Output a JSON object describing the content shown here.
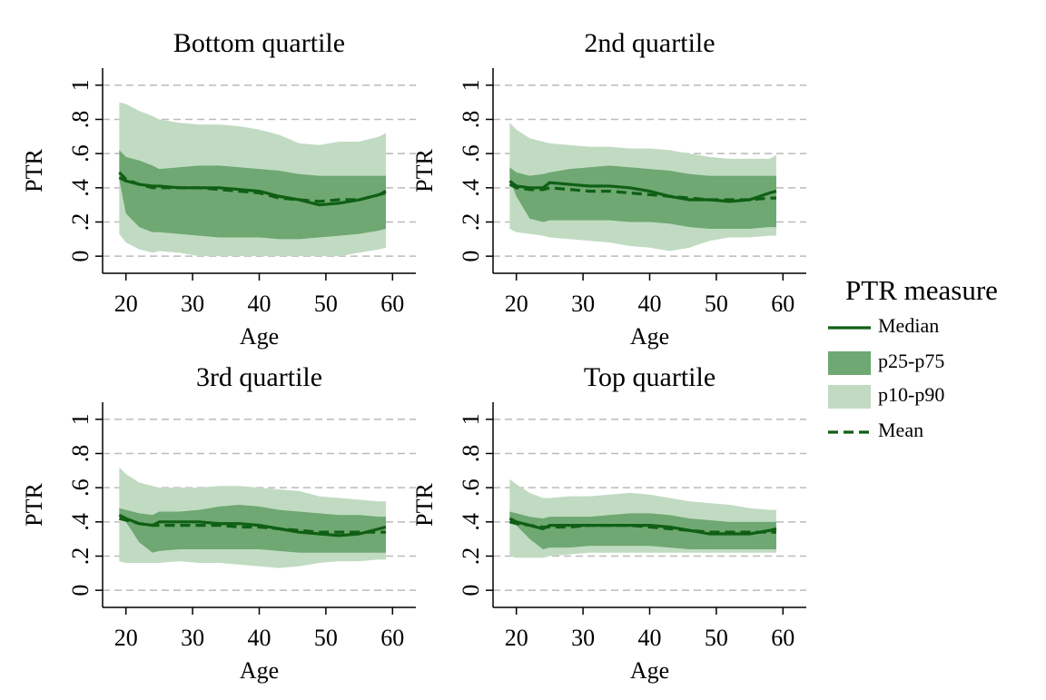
{
  "legend_title": "PTR measure",
  "legend_position": "right",
  "chart_data": [
    {
      "type": "band-line",
      "title": "Bottom quartile",
      "xlabel": "Age",
      "ylabel": "PTR",
      "x": [
        19,
        20,
        22,
        24,
        25,
        28,
        31,
        34,
        37,
        40,
        43,
        46,
        49,
        52,
        55,
        58,
        59
      ],
      "xlim": [
        16.5,
        63.5
      ],
      "ylim": [
        -0.1,
        1.1
      ],
      "xticks": [
        20,
        30,
        40,
        50,
        60
      ],
      "yticks": [
        0,
        {
          "value": 0.2,
          "label": ".2"
        },
        {
          "value": 0.4,
          "label": ".4"
        },
        {
          "value": 0.6,
          "label": ".6"
        },
        {
          "value": 0.8,
          "label": ".8"
        },
        1
      ],
      "grid": true,
      "series": [
        {
          "name": "Median",
          "type": "line",
          "color": "#0f5f14",
          "values": [
            0.46,
            0.44,
            0.42,
            0.41,
            0.41,
            0.4,
            0.4,
            0.4,
            0.39,
            0.38,
            0.35,
            0.33,
            0.3,
            0.31,
            0.33,
            0.36,
            0.38
          ]
        },
        {
          "name": "p25-p75",
          "type": "band",
          "color": "#6fa872",
          "low": [
            0.45,
            0.25,
            0.17,
            0.14,
            0.14,
            0.13,
            0.12,
            0.11,
            0.11,
            0.11,
            0.1,
            0.1,
            0.11,
            0.12,
            0.13,
            0.15,
            0.16
          ],
          "high": [
            0.62,
            0.58,
            0.56,
            0.53,
            0.51,
            0.52,
            0.53,
            0.53,
            0.52,
            0.51,
            0.5,
            0.48,
            0.47,
            0.47,
            0.47,
            0.47,
            0.47
          ]
        },
        {
          "name": "p10-p90",
          "type": "band",
          "color": "#c1dbc2",
          "low": [
            0.13,
            0.08,
            0.04,
            0.02,
            0.03,
            0.02,
            0.0,
            0.0,
            0.0,
            0.0,
            0.0,
            0.0,
            0.0,
            0.0,
            0.02,
            0.04,
            0.05
          ],
          "high": [
            0.9,
            0.89,
            0.85,
            0.82,
            0.8,
            0.78,
            0.77,
            0.77,
            0.76,
            0.74,
            0.71,
            0.66,
            0.65,
            0.67,
            0.67,
            0.7,
            0.72
          ]
        },
        {
          "name": "Mean",
          "type": "line",
          "dash": true,
          "color": "#0f5f14",
          "values": [
            0.49,
            0.45,
            0.42,
            0.4,
            0.4,
            0.4,
            0.4,
            0.39,
            0.38,
            0.37,
            0.34,
            0.33,
            0.32,
            0.33,
            0.33,
            0.36,
            0.37
          ]
        }
      ]
    },
    {
      "type": "band-line",
      "title": "2nd quartile",
      "xlabel": "Age",
      "ylabel": "PTR",
      "x": [
        19,
        20,
        22,
        24,
        25,
        28,
        31,
        34,
        37,
        40,
        43,
        46,
        49,
        52,
        55,
        58,
        59
      ],
      "xlim": [
        16.5,
        63.5
      ],
      "ylim": [
        -0.1,
        1.1
      ],
      "xticks": [
        20,
        30,
        40,
        50,
        60
      ],
      "yticks": [
        0,
        {
          "value": 0.2,
          "label": ".2"
        },
        {
          "value": 0.4,
          "label": ".4"
        },
        {
          "value": 0.6,
          "label": ".6"
        },
        {
          "value": 0.8,
          "label": ".8"
        },
        1
      ],
      "grid": true,
      "series": [
        {
          "name": "Median",
          "type": "line",
          "color": "#0f5f14",
          "values": [
            0.44,
            0.41,
            0.4,
            0.4,
            0.43,
            0.42,
            0.41,
            0.41,
            0.4,
            0.38,
            0.35,
            0.33,
            0.33,
            0.32,
            0.33,
            0.37,
            0.38
          ]
        },
        {
          "name": "p25-p75",
          "type": "band",
          "color": "#6fa872",
          "low": [
            0.45,
            0.35,
            0.22,
            0.2,
            0.21,
            0.21,
            0.21,
            0.21,
            0.2,
            0.2,
            0.19,
            0.17,
            0.16,
            0.16,
            0.16,
            0.17,
            0.17
          ],
          "high": [
            0.52,
            0.49,
            0.47,
            0.48,
            0.49,
            0.51,
            0.52,
            0.53,
            0.52,
            0.51,
            0.5,
            0.48,
            0.47,
            0.47,
            0.47,
            0.47,
            0.47
          ]
        },
        {
          "name": "p10-p90",
          "type": "band",
          "color": "#c1dbc2",
          "low": [
            0.16,
            0.14,
            0.13,
            0.12,
            0.11,
            0.1,
            0.09,
            0.08,
            0.06,
            0.05,
            0.03,
            0.05,
            0.09,
            0.11,
            0.11,
            0.12,
            0.12
          ],
          "high": [
            0.78,
            0.74,
            0.69,
            0.67,
            0.66,
            0.65,
            0.64,
            0.64,
            0.63,
            0.63,
            0.62,
            0.6,
            0.58,
            0.57,
            0.57,
            0.57,
            0.59
          ]
        },
        {
          "name": "Mean",
          "type": "line",
          "dash": true,
          "color": "#0f5f14",
          "values": [
            0.42,
            0.4,
            0.39,
            0.39,
            0.4,
            0.39,
            0.38,
            0.38,
            0.37,
            0.36,
            0.35,
            0.34,
            0.33,
            0.33,
            0.33,
            0.34,
            0.34
          ]
        }
      ]
    },
    {
      "type": "band-line",
      "title": "3rd quartile",
      "xlabel": "Age",
      "ylabel": "PTR",
      "x": [
        19,
        20,
        22,
        24,
        25,
        28,
        31,
        34,
        37,
        40,
        43,
        46,
        49,
        52,
        55,
        58,
        59
      ],
      "xlim": [
        16.5,
        63.5
      ],
      "ylim": [
        -0.1,
        1.1
      ],
      "xticks": [
        20,
        30,
        40,
        50,
        60
      ],
      "yticks": [
        0,
        {
          "value": 0.2,
          "label": ".2"
        },
        {
          "value": 0.4,
          "label": ".4"
        },
        {
          "value": 0.6,
          "label": ".6"
        },
        {
          "value": 0.8,
          "label": ".8"
        },
        1
      ],
      "grid": true,
      "series": [
        {
          "name": "Median",
          "type": "line",
          "color": "#0f5f14",
          "values": [
            0.44,
            0.42,
            0.39,
            0.38,
            0.4,
            0.4,
            0.4,
            0.39,
            0.39,
            0.38,
            0.36,
            0.34,
            0.33,
            0.32,
            0.33,
            0.36,
            0.37
          ]
        },
        {
          "name": "p25-p75",
          "type": "band",
          "color": "#6fa872",
          "low": [
            0.44,
            0.4,
            0.28,
            0.22,
            0.23,
            0.24,
            0.24,
            0.24,
            0.24,
            0.24,
            0.23,
            0.22,
            0.22,
            0.22,
            0.22,
            0.22,
            0.22
          ],
          "high": [
            0.48,
            0.47,
            0.45,
            0.44,
            0.46,
            0.46,
            0.47,
            0.49,
            0.5,
            0.49,
            0.47,
            0.46,
            0.45,
            0.44,
            0.44,
            0.43,
            0.43
          ]
        },
        {
          "name": "p10-p90",
          "type": "band",
          "color": "#c1dbc2",
          "low": [
            0.17,
            0.16,
            0.16,
            0.16,
            0.16,
            0.17,
            0.16,
            0.16,
            0.15,
            0.14,
            0.13,
            0.14,
            0.16,
            0.17,
            0.17,
            0.18,
            0.18
          ],
          "high": [
            0.72,
            0.68,
            0.63,
            0.61,
            0.6,
            0.6,
            0.6,
            0.61,
            0.61,
            0.6,
            0.59,
            0.58,
            0.55,
            0.54,
            0.53,
            0.52,
            0.52
          ]
        },
        {
          "name": "Mean",
          "type": "line",
          "dash": true,
          "color": "#0f5f14",
          "values": [
            0.42,
            0.41,
            0.39,
            0.38,
            0.38,
            0.38,
            0.38,
            0.38,
            0.37,
            0.37,
            0.36,
            0.35,
            0.34,
            0.34,
            0.34,
            0.34,
            0.34
          ]
        }
      ]
    },
    {
      "type": "band-line",
      "title": "Top quartile",
      "xlabel": "Age",
      "ylabel": "PTR",
      "x": [
        19,
        20,
        22,
        24,
        25,
        28,
        31,
        34,
        37,
        40,
        43,
        46,
        49,
        52,
        55,
        58,
        59
      ],
      "xlim": [
        16.5,
        63.5
      ],
      "ylim": [
        -0.1,
        1.1
      ],
      "xticks": [
        20,
        30,
        40,
        50,
        60
      ],
      "yticks": [
        0,
        {
          "value": 0.2,
          "label": ".2"
        },
        {
          "value": 0.4,
          "label": ".4"
        },
        {
          "value": 0.6,
          "label": ".6"
        },
        {
          "value": 0.8,
          "label": ".8"
        },
        1
      ],
      "grid": true,
      "series": [
        {
          "name": "Median",
          "type": "line",
          "color": "#0f5f14",
          "values": [
            0.42,
            0.4,
            0.38,
            0.36,
            0.38,
            0.38,
            0.38,
            0.38,
            0.38,
            0.38,
            0.37,
            0.35,
            0.33,
            0.33,
            0.33,
            0.35,
            0.36
          ]
        },
        {
          "name": "p25-p75",
          "type": "band",
          "color": "#6fa872",
          "low": [
            0.41,
            0.38,
            0.3,
            0.24,
            0.25,
            0.25,
            0.26,
            0.26,
            0.26,
            0.26,
            0.25,
            0.24,
            0.24,
            0.24,
            0.24,
            0.24,
            0.24
          ],
          "high": [
            0.46,
            0.45,
            0.43,
            0.42,
            0.43,
            0.43,
            0.43,
            0.44,
            0.45,
            0.45,
            0.44,
            0.42,
            0.41,
            0.4,
            0.4,
            0.4,
            0.4
          ]
        },
        {
          "name": "p10-p90",
          "type": "band",
          "color": "#c1dbc2",
          "low": [
            0.2,
            0.19,
            0.19,
            0.19,
            0.2,
            0.21,
            0.22,
            0.22,
            0.22,
            0.22,
            0.22,
            0.22,
            0.22,
            0.22,
            0.22,
            0.22,
            0.22
          ],
          "high": [
            0.65,
            0.62,
            0.57,
            0.54,
            0.54,
            0.55,
            0.55,
            0.56,
            0.57,
            0.56,
            0.54,
            0.52,
            0.51,
            0.5,
            0.48,
            0.47,
            0.47
          ]
        },
        {
          "name": "Mean",
          "type": "line",
          "dash": true,
          "color": "#0f5f14",
          "values": [
            0.4,
            0.39,
            0.38,
            0.37,
            0.37,
            0.37,
            0.38,
            0.38,
            0.38,
            0.37,
            0.36,
            0.35,
            0.34,
            0.34,
            0.34,
            0.34,
            0.34
          ]
        }
      ]
    }
  ]
}
